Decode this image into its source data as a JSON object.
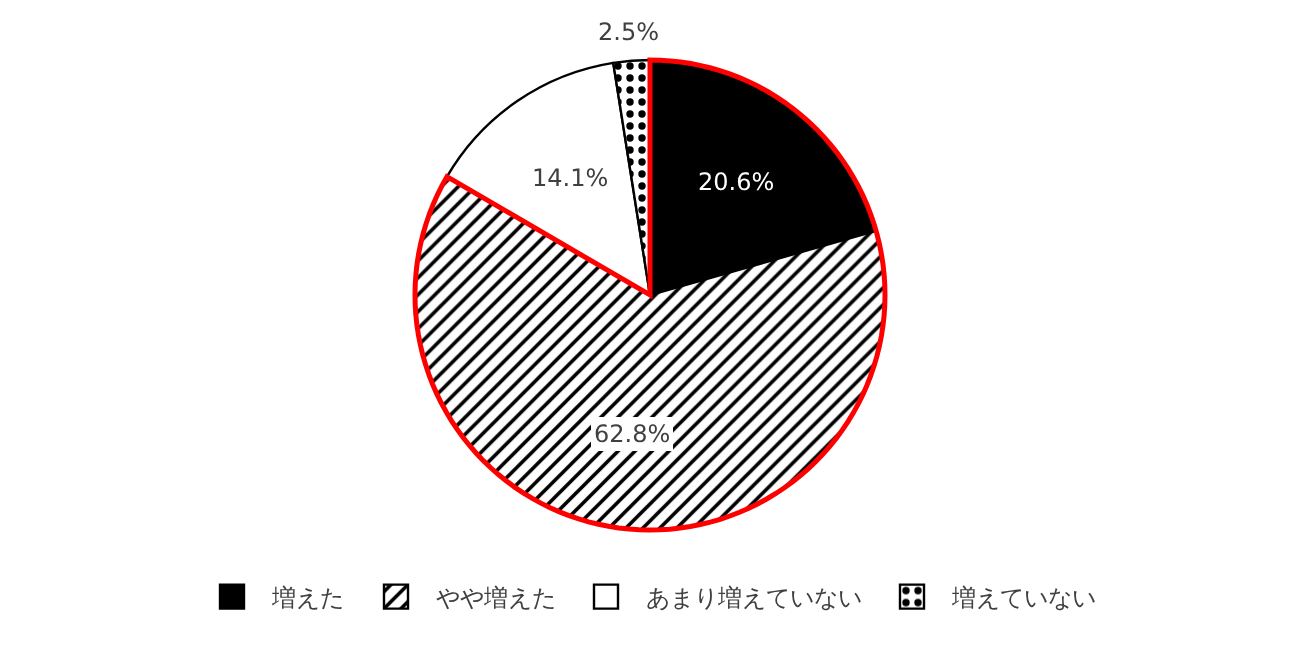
{
  "chart_data": {
    "type": "pie",
    "categories": [
      "増えた",
      "やや増えた",
      "あまり増えていない",
      "増えていない"
    ],
    "values": [
      20.6,
      62.8,
      14.1,
      2.5
    ],
    "value_labels": [
      "20.6%",
      "62.8%",
      "14.1%",
      "2.5%"
    ],
    "colors": [
      "#000000",
      "#000000",
      "#ffffff",
      "#000000"
    ],
    "legend": "bottom"
  }
}
